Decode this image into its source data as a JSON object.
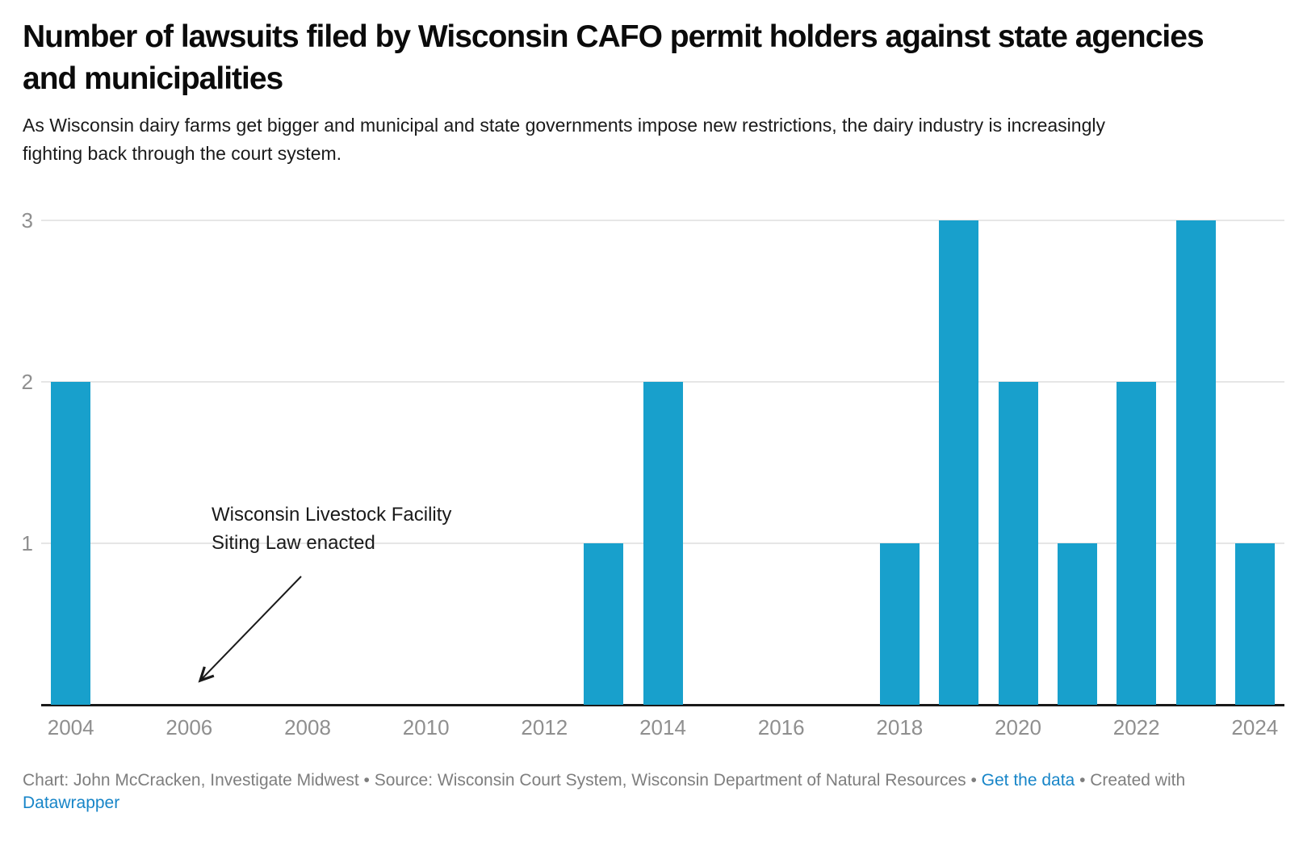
{
  "header": {
    "title": "Number of lawsuits filed by Wisconsin CAFO permit holders against state agencies and municipalities",
    "subtitle": "As Wisconsin dairy farms get bigger and municipal and state governments impose new restrictions, the dairy industry is increasingly fighting back through the court system."
  },
  "chart_data": {
    "type": "bar",
    "title": "Number of lawsuits filed by Wisconsin CAFO permit holders against state agencies and municipalities",
    "categories": [
      "2004",
      "2005",
      "2006",
      "2007",
      "2008",
      "2009",
      "2010",
      "2011",
      "2012",
      "2013",
      "2014",
      "2015",
      "2016",
      "2017",
      "2018",
      "2019",
      "2020",
      "2021",
      "2022",
      "2023",
      "2024"
    ],
    "values": [
      2,
      0,
      0,
      0,
      0,
      0,
      0,
      0,
      0,
      1,
      2,
      0,
      0,
      0,
      1,
      3,
      2,
      1,
      2,
      3,
      1
    ],
    "xlabel": "",
    "ylabel": "",
    "ylim": [
      0,
      3
    ],
    "ytick_labels": [
      "1",
      "2",
      "3"
    ],
    "xtick_labels": [
      "2004",
      "2006",
      "2008",
      "2010",
      "2012",
      "2014",
      "2016",
      "2018",
      "2020",
      "2022",
      "2024"
    ],
    "grid": true,
    "legend": false,
    "annotation": {
      "line1": "Wisconsin Livestock Facility",
      "line2": "Siting Law enacted",
      "target_year": "2006"
    }
  },
  "colors": {
    "bar": "#18a0cc",
    "link": "#1785c8",
    "axis_label": "#8f8f8f",
    "gridline": "#e6e6e6",
    "baseline": "#1a1a1a",
    "annotation_arrow": "#1a1a1a"
  },
  "footer": {
    "credit": "Chart: John McCracken, Investigate Midwest • Source: Wisconsin Court System, Wisconsin Department of Natural Resources • ",
    "get_data_label": "Get the data",
    "separator": " • ",
    "created_with": "Created with ",
    "datawrapper_label": "Datawrapper"
  }
}
